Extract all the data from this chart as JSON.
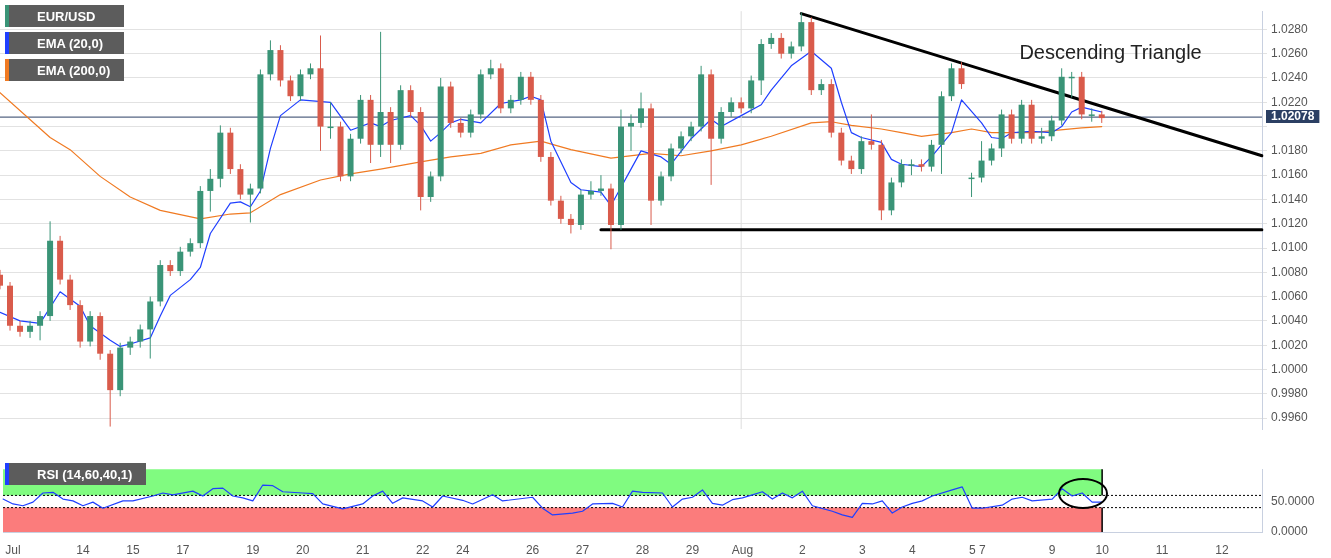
{
  "chart_data": [
    {
      "type": "candlestick",
      "categories": [
        null,
        "Jul",
        null,
        null,
        null,
        null,
        null,
        null,
        "14",
        null,
        null,
        null,
        null,
        "15",
        null,
        null,
        null,
        null,
        "17",
        null,
        null,
        null,
        null,
        null,
        null,
        "19",
        null,
        null,
        null,
        null,
        "20",
        null,
        null,
        null,
        null,
        null,
        "21",
        null,
        null,
        null,
        null,
        null,
        "22",
        null,
        null,
        null,
        "24",
        null,
        null,
        null,
        null,
        null,
        null,
        "26",
        null,
        null,
        null,
        null,
        "27",
        null,
        null,
        null,
        null,
        null,
        "28",
        null,
        null,
        null,
        null,
        "29",
        null,
        null,
        null,
        null,
        "Aug",
        null,
        null,
        null,
        null,
        null,
        "2",
        null,
        null,
        null,
        null,
        null,
        "3",
        null,
        null,
        null,
        null,
        "4",
        null,
        null,
        null,
        null,
        null,
        "5",
        "7",
        null,
        null,
        null,
        null,
        null,
        null,
        "9",
        null,
        null,
        null,
        null,
        "10",
        null,
        null,
        null,
        null,
        null,
        "11",
        null,
        null,
        null,
        null,
        null,
        "12",
        null,
        null,
        null,
        null
      ],
      "ylim": [
        0.9951,
        1.0295
      ],
      "yticks": [
        {
          "value": 0.996,
          "label": "0.9960"
        },
        {
          "value": 0.998,
          "label": "0.9980"
        },
        {
          "value": 1.0,
          "label": "1.0000"
        },
        {
          "value": 1.002,
          "label": "1.0020"
        },
        {
          "value": 1.004,
          "label": "1.0040"
        },
        {
          "value": 1.006,
          "label": "1.0060"
        },
        {
          "value": 1.008,
          "label": "1.0080"
        },
        {
          "value": 1.01,
          "label": "1.0100"
        },
        {
          "value": 1.012,
          "label": "1.0120"
        },
        {
          "value": 1.014,
          "label": "1.0140"
        },
        {
          "value": 1.016,
          "label": "1.0160"
        },
        {
          "value": 1.018,
          "label": "1.0180"
        },
        {
          "value": 1.02,
          "label": null
        },
        {
          "value": 1.022,
          "label": "1.0220"
        },
        {
          "value": 1.024,
          "label": "1.0240"
        },
        {
          "value": 1.026,
          "label": "1.0260"
        },
        {
          "value": 1.028,
          "label": "1.0280"
        }
      ],
      "tick_labels": "y",
      "grid": "y",
      "legend": "top left",
      "annotations": [
        "Descending Triangle"
      ],
      "ref_lines": [
        {
          "axis": "y",
          "value": 1.02078,
          "label": "1.02078",
          "color": "#2b3f63"
        },
        {
          "axis": "x",
          "value": "Aug",
          "color": "#dddddd"
        }
      ],
      "series": [
        {
          "name": "EUR/USD",
          "color": "#3a9477",
          "ohlc": [
            [
              1.0078,
              1.0082,
              1.0066,
              1.0069
            ],
            [
              1.0069,
              1.0072,
              1.0032,
              1.0036
            ],
            [
              1.0036,
              1.004,
              1.0027,
              1.0031
            ],
            [
              1.0031,
              1.004,
              1.0026,
              1.0036
            ],
            [
              1.0036,
              1.0048,
              1.0024,
              1.0044
            ],
            [
              1.0044,
              1.0122,
              1.004,
              1.0106
            ],
            [
              1.0106,
              1.011,
              1.007,
              1.0074
            ],
            [
              1.0074,
              1.0078,
              1.0049,
              1.0053
            ],
            [
              1.0053,
              1.0057,
              1.0018,
              1.0023
            ],
            [
              1.0023,
              1.0048,
              1.0019,
              1.0044
            ],
            [
              1.0044,
              1.0047,
              1.0008,
              1.0013
            ],
            [
              1.0013,
              1.0016,
              0.9953,
              0.9983
            ],
            [
              0.9983,
              1.0022,
              0.9978,
              1.0018
            ],
            [
              1.0018,
              1.0027,
              1.0012,
              1.0023
            ],
            [
              1.0023,
              1.0037,
              1.0018,
              1.0033
            ],
            [
              1.0033,
              1.006,
              1.0009,
              1.0056
            ],
            [
              1.0056,
              1.009,
              1.0052,
              1.0086
            ],
            [
              1.0086,
              1.009,
              1.0077,
              1.0081
            ],
            [
              1.0081,
              1.0101,
              1.0077,
              1.0097
            ],
            [
              1.0097,
              1.0108,
              1.0093,
              1.0104
            ],
            [
              1.0104,
              1.0151,
              1.01,
              1.0147
            ],
            [
              1.0147,
              1.0165,
              1.013,
              1.0157
            ],
            [
              1.0157,
              1.0201,
              1.015,
              1.0195
            ],
            [
              1.0195,
              1.0199,
              1.0161,
              1.0165
            ],
            [
              1.0165,
              1.0169,
              1.014,
              1.0144
            ],
            [
              1.0144,
              1.0153,
              1.0121,
              1.0149
            ],
            [
              1.0149,
              1.0247,
              1.0145,
              1.0243
            ],
            [
              1.0243,
              1.0271,
              1.0238,
              1.0263
            ],
            [
              1.0263,
              1.0267,
              1.0233,
              1.0238
            ],
            [
              1.0238,
              1.0242,
              1.0221,
              1.0225
            ],
            [
              1.0225,
              1.0247,
              1.0221,
              1.0243
            ],
            [
              1.0243,
              1.0252,
              1.0239,
              1.0248
            ],
            [
              1.0248,
              1.0275,
              1.018,
              1.02
            ],
            [
              1.02,
              1.022,
              1.019,
              1.02
            ],
            [
              1.02,
              1.0204,
              1.0155,
              1.0159
            ],
            [
              1.0159,
              1.0194,
              1.0155,
              1.019
            ],
            [
              1.019,
              1.0226,
              1.0186,
              1.0222
            ],
            [
              1.0222,
              1.0226,
              1.017,
              1.0185
            ],
            [
              1.0185,
              1.0278,
              1.0175,
              1.0212
            ],
            [
              1.0212,
              1.0216,
              1.017,
              1.0185
            ],
            [
              1.0185,
              1.0234,
              1.0181,
              1.023
            ],
            [
              1.023,
              1.0234,
              1.0208,
              1.0212
            ],
            [
              1.0212,
              1.0216,
              1.0131,
              1.0142
            ],
            [
              1.0142,
              1.0163,
              1.0138,
              1.0159
            ],
            [
              1.0159,
              1.024,
              1.0155,
              1.0233
            ],
            [
              1.0233,
              1.0237,
              1.0199,
              1.0203
            ],
            [
              1.0203,
              1.0207,
              1.0191,
              1.0195
            ],
            [
              1.0195,
              1.0214,
              1.0191,
              1.021
            ],
            [
              1.021,
              1.0247,
              1.0206,
              1.0243
            ],
            [
              1.0243,
              1.0255,
              1.0239,
              1.0248
            ],
            [
              1.0248,
              1.0252,
              1.0211,
              1.0215
            ],
            [
              1.0215,
              1.0226,
              1.0211,
              1.0222
            ],
            [
              1.0222,
              1.0245,
              1.0218,
              1.0241
            ],
            [
              1.0241,
              1.0245,
              1.0218,
              1.0222
            ],
            [
              1.0222,
              1.0226,
              1.0171,
              1.0175
            ],
            [
              1.0175,
              1.0179,
              1.0135,
              1.0139
            ],
            [
              1.0139,
              1.0143,
              1.012,
              1.0124
            ],
            [
              1.0124,
              1.0128,
              1.0112,
              1.0119
            ],
            [
              1.0119,
              1.0148,
              1.0115,
              1.0144
            ],
            [
              1.0144,
              1.0155,
              1.014,
              1.0147
            ],
            [
              1.0147,
              1.016,
              1.0143,
              1.0149
            ],
            [
              1.0149,
              1.0153,
              1.0099,
              1.0119
            ],
            [
              1.0119,
              1.0214,
              1.0115,
              1.02
            ],
            [
              1.02,
              1.021,
              1.018,
              1.0203
            ],
            [
              1.0203,
              1.0228,
              1.0199,
              1.0215
            ],
            [
              1.0215,
              1.0219,
              1.0119,
              1.0139
            ],
            [
              1.0139,
              1.0163,
              1.0135,
              1.0159
            ],
            [
              1.0159,
              1.0186,
              1.0155,
              1.0182
            ],
            [
              1.0182,
              1.0196,
              1.0178,
              1.0192
            ],
            [
              1.0192,
              1.0204,
              1.0188,
              1.02
            ],
            [
              1.02,
              1.025,
              1.0196,
              1.0243
            ],
            [
              1.0243,
              1.0247,
              1.0152,
              1.019
            ],
            [
              1.019,
              1.0216,
              1.0186,
              1.0212
            ],
            [
              1.0212,
              1.0224,
              1.0208,
              1.022
            ],
            [
              1.022,
              1.0224,
              1.0211,
              1.0215
            ],
            [
              1.0215,
              1.0242,
              1.0211,
              1.0238
            ],
            [
              1.0238,
              1.0272,
              1.0226,
              1.0268
            ],
            [
              1.0268,
              1.0277,
              1.0264,
              1.0273
            ],
            [
              1.0273,
              1.0277,
              1.0256,
              1.026
            ],
            [
              1.026,
              1.027,
              1.0256,
              1.0266
            ],
            [
              1.0266,
              1.0294,
              1.0262,
              1.0286
            ],
            [
              1.0286,
              1.029,
              1.0226,
              1.023
            ],
            [
              1.023,
              1.0239,
              1.0226,
              1.0235
            ],
            [
              1.0235,
              1.0239,
              1.0191,
              1.0195
            ],
            [
              1.0195,
              1.0199,
              1.0168,
              1.0172
            ],
            [
              1.0172,
              1.0176,
              1.0161,
              1.0165
            ],
            [
              1.0165,
              1.0192,
              1.0161,
              1.0188
            ],
            [
              1.0188,
              1.021,
              1.0181,
              1.0185
            ],
            [
              1.0185,
              1.0189,
              1.0123,
              1.0131
            ],
            [
              1.0131,
              1.0158,
              1.0127,
              1.0154
            ],
            [
              1.0154,
              1.0173,
              1.015,
              1.0169
            ],
            [
              1.0169,
              1.0173,
              1.016,
              1.0169
            ],
            [
              1.0169,
              1.0173,
              1.0163,
              1.0167
            ],
            [
              1.0167,
              1.0189,
              1.0163,
              1.0185
            ],
            [
              1.0185,
              1.0229,
              1.0161,
              1.0225
            ],
            [
              1.0225,
              1.0252,
              1.0221,
              1.0248
            ],
            [
              1.0248,
              1.0253,
              1.0231,
              1.0235
            ],
            [
              1.0158,
              1.0162,
              1.0142,
              1.0158
            ],
            [
              1.0158,
              1.0188,
              1.0154,
              1.0172
            ],
            [
              1.0172,
              1.0186,
              1.0168,
              1.0182
            ],
            [
              1.0182,
              1.0214,
              1.0175,
              1.021
            ],
            [
              1.021,
              1.0214,
              1.0186,
              1.019
            ],
            [
              1.019,
              1.0222,
              1.0186,
              1.0218
            ],
            [
              1.0218,
              1.0222,
              1.0186,
              1.019
            ],
            [
              1.019,
              1.0199,
              1.0186,
              1.0192
            ],
            [
              1.0192,
              1.0209,
              1.0188,
              1.0205
            ],
            [
              1.0205,
              1.0248,
              1.0201,
              1.0241
            ],
            [
              1.0241,
              1.0245,
              1.0224,
              1.0241
            ],
            [
              1.0241,
              1.0245,
              1.0206,
              1.021
            ],
            [
              1.021,
              1.0215,
              1.0204,
              1.021
            ],
            [
              1.021,
              1.0213,
              1.0203,
              1.0207
            ],
            null,
            null,
            null,
            null,
            null,
            null,
            null,
            null,
            null,
            null,
            null,
            null,
            null,
            null,
            null,
            null
          ],
          "colors": [
            "#d95b4b",
            "#d95b4b",
            "#d95b4b",
            "#3a9477",
            "#3a9477",
            "#3a9477",
            "#d95b4b",
            "#d95b4b",
            "#d95b4b",
            "#3a9477",
            "#d95b4b",
            "#d95b4b",
            "#3a9477",
            "#3a9477",
            "#3a9477",
            "#3a9477",
            "#3a9477",
            "#d95b4b",
            "#3a9477",
            "#3a9477",
            "#3a9477",
            "#3a9477",
            "#3a9477",
            "#d95b4b",
            "#d95b4b",
            "#3a9477",
            "#3a9477",
            "#3a9477",
            "#d95b4b",
            "#d95b4b",
            "#3a9477",
            "#3a9477",
            "#d95b4b",
            "#3a9477",
            "#d95b4b",
            "#3a9477",
            "#3a9477",
            "#d95b4b",
            "#3a9477",
            "#d95b4b",
            "#3a9477",
            "#d95b4b",
            "#d95b4b",
            "#3a9477",
            "#3a9477",
            "#d95b4b",
            "#d95b4b",
            "#3a9477",
            "#3a9477",
            "#3a9477",
            "#d95b4b",
            "#3a9477",
            "#3a9477",
            "#d95b4b",
            "#d95b4b",
            "#d95b4b",
            "#d95b4b",
            "#d95b4b",
            "#3a9477",
            "#3a9477",
            "#3a9477",
            "#d95b4b",
            "#3a9477",
            "#3a9477",
            "#3a9477",
            "#d95b4b",
            "#3a9477",
            "#3a9477",
            "#3a9477",
            "#3a9477",
            "#3a9477",
            "#d95b4b",
            "#3a9477",
            "#3a9477",
            "#d95b4b",
            "#3a9477",
            "#3a9477",
            "#3a9477",
            "#d95b4b",
            "#3a9477",
            "#3a9477",
            "#d95b4b",
            "#3a9477",
            "#d95b4b",
            "#d95b4b",
            "#d95b4b",
            "#3a9477",
            "#d95b4b",
            "#d95b4b",
            "#3a9477",
            "#3a9477",
            "#3a9477",
            "#d95b4b",
            "#3a9477",
            "#3a9477",
            "#3a9477",
            "#d95b4b",
            "#3a9477",
            "#3a9477",
            "#3a9477",
            "#3a9477",
            "#d95b4b",
            "#3a9477",
            "#d95b4b",
            "#3a9477",
            "#3a9477",
            "#3a9477",
            "#3a9477",
            "#d95b4b",
            "#3a9477",
            "#d95b4b",
            null,
            null,
            null,
            null,
            null,
            null,
            null,
            null,
            null,
            null,
            null,
            null,
            null,
            null,
            null,
            null
          ]
        },
        {
          "name": "EMA (20,0)",
          "type": "line",
          "color": "#1f3fff",
          "values": [
            1.0047,
            null,
            1.004,
            null,
            1.0038,
            null,
            1.0064,
            null,
            1.0052,
            1.0036,
            null,
            1.0024,
            1.0019,
            1.0021,
            null,
            1.0026,
            1.0044,
            1.0061,
            null,
            1.0074,
            1.0084,
            1.0112,
            null,
            1.0137,
            1.0138,
            1.0134,
            1.0147,
            1.0182,
            1.0209,
            null,
            1.0222,
            null,
            null,
            1.022,
            null,
            1.0197,
            null,
            1.0203,
            1.02,
            1.0205,
            null,
            1.0209,
            1.0201,
            1.0188,
            1.0195,
            1.0203,
            1.0206,
            null,
            1.0203,
            null,
            1.0219,
            null,
            1.0222,
            1.0225,
            1.0222,
            1.0188,
            null,
            1.0154,
            1.0148,
            null,
            1.0146,
            1.0135,
            null,
            1.0165,
            1.018,
            null,
            1.0175,
            1.0169,
            null,
            1.019,
            null,
            1.0206,
            1.02,
            null,
            1.0209,
            null,
            1.0218,
            1.023,
            null,
            1.025,
            null,
            1.0262,
            null,
            1.0248,
            1.022,
            1.0195,
            1.0191,
            null,
            1.0187,
            1.0173,
            1.0169,
            null,
            1.0167,
            1.0175,
            null,
            1.0195,
            1.0222,
            null,
            1.0203,
            1.0191,
            1.019,
            1.0195,
            null,
            1.0196,
            null,
            1.0195,
            1.02,
            1.0212,
            1.0216,
            1.0214,
            1.0212,
            null,
            null,
            null,
            null,
            null,
            null,
            null,
            null,
            null,
            null,
            null,
            null,
            null,
            null,
            null,
            null
          ]
        },
        {
          "name": "EMA (200,0)",
          "type": "line",
          "color": "#f07a22",
          "values": [
            1.0228,
            null,
            null,
            null,
            null,
            1.0191,
            null,
            1.0181,
            null,
            null,
            1.0159,
            null,
            null,
            1.0142,
            null,
            null,
            1.0131,
            null,
            null,
            null,
            1.0124,
            null,
            null,
            1.0128,
            null,
            1.0129,
            null,
            null,
            1.0144,
            null,
            null,
            null,
            1.0156,
            null,
            null,
            1.0161,
            null,
            null,
            1.0165,
            null,
            null,
            null,
            1.0171,
            null,
            null,
            1.0175,
            null,
            null,
            1.0178,
            null,
            null,
            1.0185,
            null,
            null,
            1.0188,
            null,
            null,
            1.0181,
            null,
            null,
            null,
            1.0174,
            null,
            null,
            null,
            1.0178,
            null,
            null,
            1.0176,
            null,
            null,
            1.018,
            null,
            null,
            1.0185,
            null,
            null,
            1.0192,
            null,
            null,
            null,
            1.0203,
            null,
            1.0204,
            null,
            1.0201,
            null,
            null,
            1.0198,
            null,
            1.0195,
            null,
            1.0192,
            null,
            null,
            1.0195,
            null,
            1.0198,
            null,
            1.0195,
            null,
            null,
            null,
            1.0195,
            null,
            null,
            null,
            null,
            1.0199,
            null,
            1.02,
            null,
            null,
            null,
            null,
            null,
            null,
            null,
            null,
            null,
            null,
            null,
            null,
            null,
            null,
            null,
            null
          ]
        },
        {
          "type": "line",
          "color": "#000000",
          "values": [
            null,
            null,
            null,
            null,
            null,
            null,
            null,
            null,
            null,
            null,
            null,
            null,
            null,
            null,
            null,
            null,
            null,
            null,
            null,
            null,
            null,
            null,
            null,
            null,
            null,
            null,
            null,
            null,
            null,
            null,
            null,
            null,
            null,
            null,
            null,
            null,
            null,
            null,
            null,
            null,
            null,
            null,
            null,
            null,
            null,
            null,
            null,
            null,
            null,
            null,
            null,
            null,
            null,
            null,
            null,
            null,
            null,
            null,
            null,
            null,
            null,
            null,
            null,
            null,
            null,
            null,
            null,
            null,
            null,
            null,
            null,
            null,
            null,
            null,
            null,
            null,
            null,
            null,
            null,
            null,
            1.0293,
            null,
            null,
            null,
            null,
            null,
            null,
            null,
            null,
            null,
            null,
            null,
            null,
            null,
            null,
            null,
            null,
            null,
            null,
            null,
            null,
            null,
            null,
            null,
            null,
            null,
            null,
            null,
            null,
            null,
            null,
            null,
            null,
            null,
            null,
            null,
            null,
            null,
            null,
            null,
            null,
            null,
            null,
            null,
            null,
            null,
            1.0176
          ]
        },
        {
          "type": "line",
          "color": "#000000",
          "values": [
            null,
            null,
            null,
            null,
            null,
            null,
            null,
            null,
            null,
            null,
            null,
            null,
            null,
            null,
            null,
            null,
            null,
            null,
            null,
            null,
            null,
            null,
            null,
            null,
            null,
            null,
            null,
            null,
            null,
            null,
            null,
            null,
            null,
            null,
            null,
            null,
            null,
            null,
            null,
            null,
            null,
            null,
            null,
            null,
            null,
            null,
            null,
            null,
            null,
            null,
            null,
            null,
            null,
            null,
            null,
            null,
            null,
            null,
            null,
            null,
            1.0115,
            null,
            null,
            null,
            null,
            null,
            null,
            null,
            null,
            null,
            null,
            null,
            null,
            null,
            null,
            null,
            null,
            null,
            null,
            null,
            null,
            null,
            null,
            null,
            null,
            null,
            null,
            null,
            null,
            null,
            null,
            null,
            null,
            null,
            null,
            null,
            null,
            null,
            null,
            null,
            null,
            null,
            null,
            null,
            null,
            null,
            null,
            null,
            null,
            null,
            null,
            null,
            null,
            null,
            null,
            null,
            null,
            null,
            null,
            null,
            null,
            null,
            null,
            null,
            null,
            null,
            1.0115
          ]
        }
      ]
    },
    {
      "type": "line",
      "categories": [
        null,
        "Jul",
        null,
        null,
        null,
        null,
        null,
        null,
        "14",
        null,
        null,
        null,
        null,
        "15",
        null,
        null,
        null,
        null,
        "17",
        null,
        null,
        null,
        null,
        null,
        null,
        "19",
        null,
        null,
        null,
        null,
        "20",
        null,
        null,
        null,
        null,
        null,
        "21",
        null,
        null,
        null,
        null,
        null,
        "22",
        null,
        null,
        null,
        "24",
        null,
        null,
        null,
        null,
        null,
        null,
        "26",
        null,
        null,
        null,
        null,
        "27",
        null,
        null,
        null,
        null,
        null,
        "28",
        null,
        null,
        null,
        null,
        "29",
        null,
        null,
        null,
        null,
        "Aug",
        null,
        null,
        null,
        null,
        null,
        "2",
        null,
        null,
        null,
        null,
        null,
        "3",
        null,
        null,
        null,
        null,
        "4",
        null,
        null,
        null,
        null,
        null,
        "5",
        "7",
        null,
        null,
        null,
        null,
        null,
        null,
        "9",
        null,
        null,
        null,
        null,
        "10",
        null,
        null,
        null,
        null,
        null,
        "11",
        null,
        null,
        null,
        null,
        null,
        "12",
        null,
        null,
        null,
        null
      ],
      "ylim": [
        0,
        103
      ],
      "yticks": [
        {
          "value": 0,
          "label": "0.0000"
        },
        {
          "value": 50,
          "label": "50.0000"
        }
      ],
      "legend": "top left",
      "bands": [
        {
          "axis": "y",
          "from": 60,
          "to": 103,
          "color": "#80fb80"
        },
        {
          "axis": "y",
          "from": 0,
          "to": 40,
          "color": "#fb7c7c"
        }
      ],
      "ref_lines": [
        {
          "axis": "y",
          "value": 60,
          "color": "#000000",
          "line_style": "dotted"
        },
        {
          "axis": "y",
          "value": 40,
          "color": "#000000",
          "line_style": "dotted"
        }
      ],
      "series": [
        {
          "name": "RSI (14,60,40,1)",
          "color": "#1f3fff",
          "values": [
            54,
            46,
            43,
            49,
            64,
            65,
            54,
            51,
            43,
            49,
            39,
            null,
            51,
            51,
            null,
            59,
            64,
            61,
            null,
            67,
            59,
            71,
            72,
            59,
            56,
            51,
            77,
            76,
            66,
            null,
            64,
            63,
            46,
            null,
            38,
            null,
            46,
            59,
            67,
            47,
            56,
            null,
            51,
            41,
            59,
            null,
            52,
            46,
            null,
            61,
            51,
            null,
            null,
            57,
            39,
            28,
            null,
            31,
            34,
            46,
            null,
            47,
            41,
            67,
            65,
            null,
            64,
            41,
            54,
            57,
            69,
            47,
            44,
            53,
            56,
            61,
            66,
            54,
            64,
            56,
            67,
            43,
            null,
            34,
            28,
            24,
            47,
            46,
            51,
            31,
            41,
            47,
            51,
            59,
            null,
            69,
            74,
            39,
            39,
            null,
            44,
            54,
            57,
            51,
            null,
            54,
            71,
            59,
            64,
            49,
            49,
            null,
            null,
            null,
            null,
            null,
            null,
            null,
            null,
            null,
            null,
            null,
            null,
            null,
            null,
            null,
            null
          ]
        }
      ]
    }
  ]
}
